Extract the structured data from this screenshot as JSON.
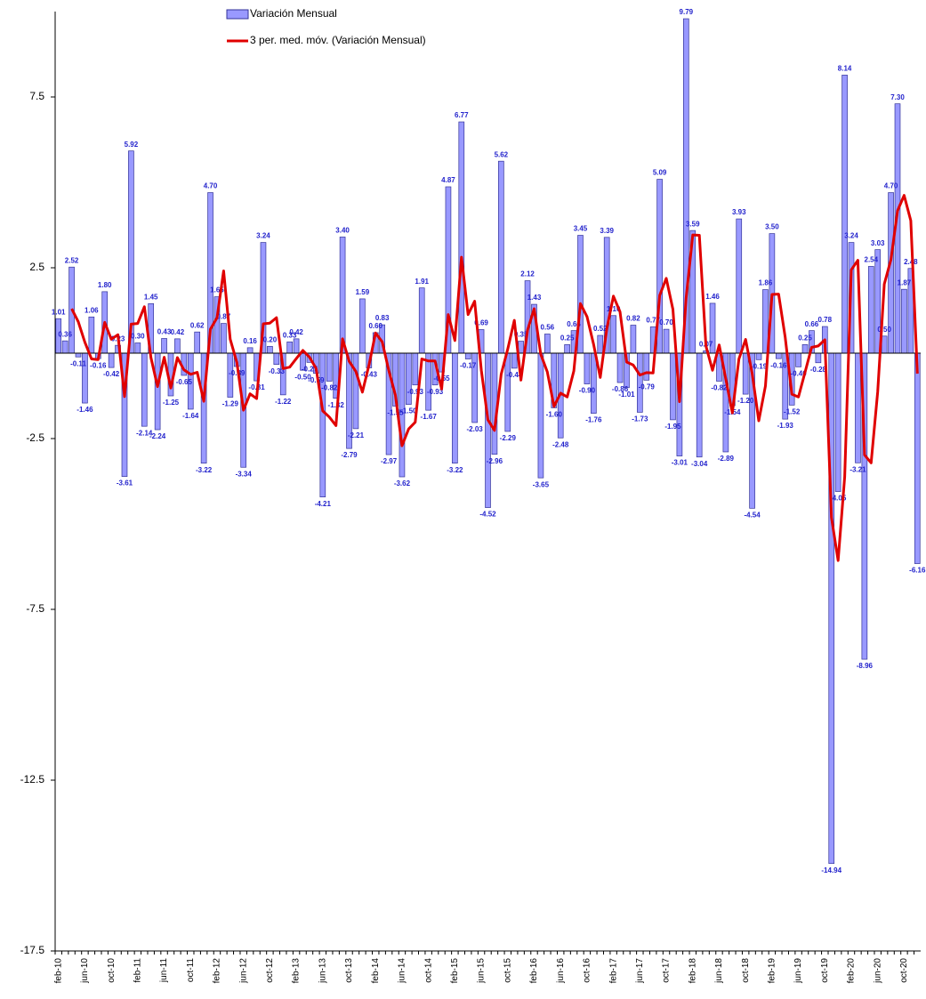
{
  "chart_data": {
    "type": "bar",
    "categories": [
      "feb-10",
      null,
      null,
      null,
      "jun-10",
      null,
      null,
      null,
      "oct-10",
      null,
      null,
      null,
      "feb-11",
      null,
      null,
      null,
      "jun-11",
      null,
      null,
      null,
      "oct-11",
      null,
      null,
      null,
      "feb-12",
      null,
      null,
      null,
      "jun-12",
      null,
      null,
      null,
      "oct-12",
      null,
      null,
      null,
      "feb-13",
      null,
      null,
      null,
      "jun-13",
      null,
      null,
      null,
      "oct-13",
      null,
      null,
      null,
      "feb-14",
      null,
      null,
      null,
      "jun-14",
      null,
      null,
      null,
      "oct-14",
      null,
      null,
      null,
      "feb-15",
      null,
      null,
      null,
      "jun-15",
      null,
      null,
      null,
      "oct-15",
      null,
      null,
      null,
      "feb-16",
      null,
      null,
      null,
      "jun-16",
      null,
      null,
      null,
      "oct-16",
      null,
      null,
      null,
      "feb-17",
      null,
      null,
      null,
      "jun-17",
      null,
      null,
      null,
      "oct-17",
      null,
      null,
      null,
      "feb-18",
      null,
      null,
      null,
      "jun-18",
      null,
      null,
      null,
      "oct-18",
      null,
      null,
      null,
      "feb-19",
      null,
      null,
      null,
      "jun-19",
      null,
      null,
      null,
      "oct-19",
      null,
      null,
      null,
      "feb-20",
      null,
      null,
      null,
      "jun-20",
      null,
      null,
      null,
      "oct-20",
      null,
      null
    ],
    "series": [
      {
        "name": "Variación Mensual",
        "type": "bar",
        "color": "#9999ff",
        "edge": "#333399",
        "label_color": "#2222cc",
        "values": [
          1.01,
          0.36,
          2.52,
          -0.11,
          -1.46,
          1.06,
          -0.16,
          1.8,
          -0.42,
          0.23,
          -3.61,
          5.92,
          0.3,
          -2.14,
          1.45,
          -2.24,
          0.43,
          -1.25,
          0.42,
          -0.65,
          -1.64,
          0.62,
          -3.22,
          4.7,
          1.65,
          0.87,
          -1.29,
          -0.39,
          -3.34,
          0.16,
          -0.81,
          3.24,
          0.2,
          -0.33,
          -1.22,
          0.33,
          0.42,
          -0.5,
          -0.27,
          -0.59,
          -4.21,
          -0.82,
          -1.32,
          3.4,
          -2.79,
          -2.21,
          1.59,
          -0.43,
          0.6,
          0.83,
          -2.97,
          -1.55,
          -3.62,
          -1.5,
          -0.93,
          1.91,
          -1.67,
          -0.93,
          -0.55,
          4.87,
          -3.22,
          6.77,
          -0.17,
          -2.03,
          0.69,
          -4.52,
          -2.96,
          5.62,
          -2.29,
          -0.44,
          0.35,
          2.12,
          1.43,
          -3.65,
          0.56,
          -1.6,
          -2.48,
          0.25,
          0.66,
          3.45,
          -0.9,
          -1.76,
          0.52,
          3.39,
          1.1,
          -0.86,
          -1.01,
          0.82,
          -1.73,
          -0.79,
          0.77,
          5.09,
          0.7,
          -1.95,
          -3.01,
          9.79,
          3.59,
          -3.04,
          0.07,
          1.46,
          -0.82,
          -2.89,
          -1.54,
          3.93,
          -1.2,
          -4.54,
          -0.19,
          1.86,
          3.5,
          -0.16,
          -1.93,
          -1.52,
          -0.4,
          0.25,
          0.66,
          -0.28,
          0.78,
          -14.94,
          -4.05,
          8.14,
          3.24,
          -3.21,
          -8.96,
          2.54,
          3.03,
          0.5,
          4.7,
          7.3,
          1.87,
          2.48,
          -6.16
        ],
        "value_labels": [
          "1.01",
          "0.36",
          "2.52",
          "-0.11",
          "-1.46",
          "1.06",
          "-0.16",
          "1.80",
          "-0.42",
          "0.23",
          "-3.61",
          "5.92",
          "0.30",
          "-2.14",
          "1.45",
          "-2.24",
          "0.43",
          "-1.25",
          "0.42",
          "-0.65",
          "-1.64",
          "0.62",
          "-3.22",
          "4.70",
          "1.65",
          "0.87",
          "-1.29",
          "-0.39",
          "-3.34",
          "0.16",
          "-0.81",
          "3.24",
          "0.20",
          "-0.33",
          "-1.22",
          "0.33",
          "0.42",
          "-0.50",
          "-0.27",
          "-0.59",
          "-4.21",
          "-0.82",
          "-1.32",
          "3.40",
          "-2.79",
          "-2.21",
          "1.59",
          "-0.43",
          "0.60",
          "0.83",
          "-2.97",
          "-1.55",
          "-3.62",
          "-1.50",
          "-0.93",
          "1.91",
          "-1.67",
          "-0.93",
          "-0.55",
          "4.87",
          "-3.22",
          "6.77",
          "-0.17",
          "-2.03",
          "0.69",
          "-4.52",
          "-2.96",
          "5.62",
          "-2.29",
          "-0.44",
          "0.35",
          "2.12",
          "1.43",
          "-3.65",
          "0.56",
          "-1.60",
          "-2.48",
          "0.25",
          "0.66",
          "3.45",
          "-0.90",
          "-1.76",
          "0.52",
          "3.39",
          "1.10",
          "-0.86",
          "-1.01",
          "0.82",
          "-1.73",
          "-0.79",
          "0.77",
          "5.09",
          "0.70",
          "-1.95",
          "-3.01",
          "9.79",
          "3.59",
          "-3.04",
          "0.07",
          "1.46",
          "-0.82",
          "-2.89",
          "-1.54",
          "3.93",
          "-1.20",
          "-4.54",
          "-0.19",
          "1.86",
          "3.50",
          "-0.16",
          "-1.93",
          "-1.52",
          "-0.40",
          "0.25",
          "0.66",
          "-0.28",
          "0.78",
          "-14.94",
          "-4.05",
          "8.14",
          "3.24",
          "-3.21",
          "-8.96",
          "2.54",
          "3.03",
          "0.50",
          "4.70",
          "7.30",
          "1.87",
          "2.48",
          "-6.16"
        ]
      },
      {
        "name": "3 per. med. móv. (Variación Mensual)",
        "type": "line",
        "color": "#e00000",
        "values": [
          null,
          null,
          1.3,
          0.92,
          0.32,
          -0.17,
          -0.19,
          0.9,
          0.41,
          0.54,
          -1.27,
          0.85,
          0.87,
          1.36,
          -0.13,
          -0.98,
          -0.12,
          -1.02,
          -0.13,
          -0.49,
          -0.62,
          -0.56,
          -1.41,
          0.7,
          1.04,
          2.41,
          0.41,
          -0.27,
          -1.67,
          -1.19,
          -1.33,
          0.86,
          0.88,
          1.04,
          -0.45,
          -0.41,
          -0.16,
          0.08,
          -0.12,
          -0.45,
          -1.69,
          -1.87,
          -2.12,
          0.42,
          -0.24,
          -0.53,
          -1.14,
          -0.35,
          0.59,
          0.33,
          -0.51,
          -1.23,
          -2.71,
          -2.22,
          -2.02,
          -0.17,
          -0.23,
          -0.23,
          -1.05,
          1.13,
          0.37,
          2.81,
          1.13,
          1.52,
          -0.5,
          -1.95,
          -2.26,
          -0.62,
          0.12,
          0.96,
          -0.79,
          0.68,
          1.3,
          -0.03,
          -0.55,
          -1.56,
          -1.17,
          -1.28,
          -0.52,
          1.45,
          1.07,
          0.26,
          -0.71,
          0.72,
          1.67,
          1.21,
          -0.26,
          -0.35,
          -0.64,
          -0.57,
          -0.58,
          1.69,
          2.19,
          1.28,
          -1.42,
          1.61,
          3.46,
          3.45,
          0.21,
          -0.5,
          0.24,
          -0.75,
          -1.75,
          -0.17,
          0.4,
          -0.6,
          -1.98,
          -0.96,
          1.72,
          1.73,
          0.47,
          -1.2,
          -1.28,
          -0.56,
          0.17,
          0.21,
          0.39,
          -4.81,
          -6.07,
          -3.62,
          2.44,
          2.72,
          -2.98,
          -3.21,
          -1.13,
          2.02,
          2.74,
          4.17,
          4.62,
          3.88,
          -0.6
        ]
      }
    ],
    "ylim": [
      -17.5,
      10
    ],
    "yticks": [
      -17.5,
      -12.5,
      -7.5,
      -2.5,
      2.5,
      7.5
    ],
    "grid": false,
    "legend": "top"
  }
}
